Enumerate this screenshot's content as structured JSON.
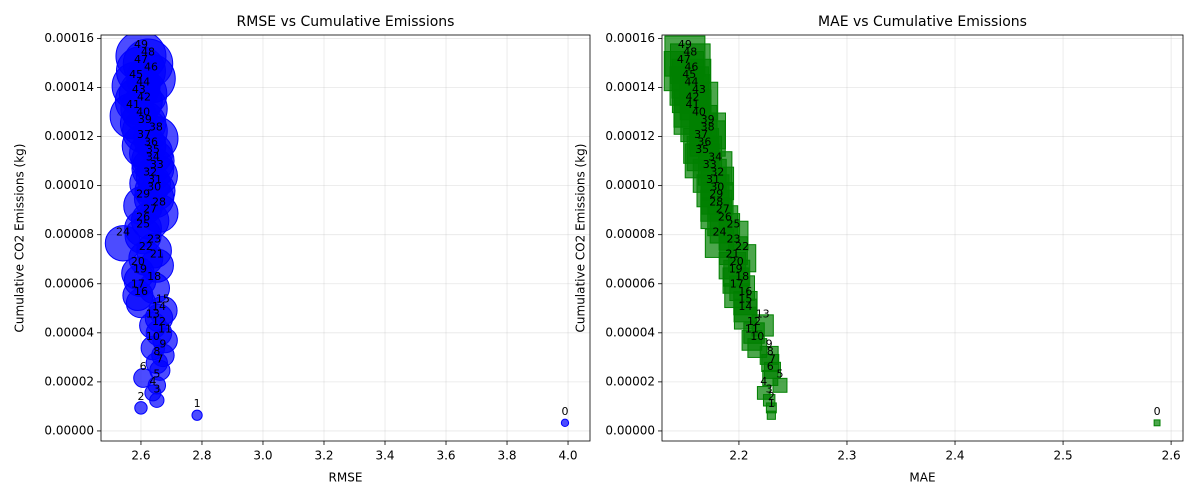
{
  "chart_data": [
    {
      "type": "scatter",
      "marker": "circle",
      "title": "RMSE vs Cumulative Emissions",
      "xlabel": "RMSE",
      "ylabel": "Cumulative CO2 Emissions (kg)",
      "color": "#0000ff",
      "grid": true,
      "point_labels": [
        0,
        1,
        2,
        3,
        4,
        5,
        6,
        7,
        8,
        9,
        10,
        11,
        12,
        13,
        14,
        15,
        16,
        17,
        18,
        19,
        20,
        21,
        22,
        23,
        24,
        25,
        26,
        27,
        28,
        29,
        30,
        31,
        32,
        33,
        34,
        35,
        36,
        37,
        38,
        39,
        40,
        41,
        42,
        43,
        44,
        45,
        46,
        47,
        48,
        49
      ],
      "x": [
        3.99,
        2.784,
        2.6,
        2.652,
        2.639,
        2.652,
        2.607,
        2.662,
        2.652,
        2.672,
        2.639,
        2.679,
        2.659,
        2.639,
        2.659,
        2.672,
        2.6,
        2.59,
        2.643,
        2.597,
        2.59,
        2.652,
        2.616,
        2.643,
        2.541,
        2.607,
        2.607,
        2.63,
        2.659,
        2.607,
        2.643,
        2.646,
        2.63,
        2.652,
        2.639,
        2.639,
        2.633,
        2.61,
        2.649,
        2.613,
        2.607,
        2.574,
        2.61,
        2.593,
        2.607,
        2.584,
        2.633,
        2.6,
        2.623,
        2.6
      ],
      "values": [
        3.3e-06,
        6.4e-06,
        9.4e-06,
        1.25e-05,
        1.55e-05,
        1.86e-05,
        2.16e-05,
        2.47e-05,
        2.77e-05,
        3.08e-05,
        3.38e-05,
        3.69e-05,
        3.99e-05,
        4.3e-05,
        4.6e-05,
        4.91e-05,
        5.21e-05,
        5.52e-05,
        5.82e-05,
        6.13e-05,
        6.43e-05,
        6.74e-05,
        7.04e-05,
        7.35e-05,
        7.65e-05,
        7.96e-05,
        8.26e-05,
        8.57e-05,
        8.87e-05,
        9.18e-05,
        9.48e-05,
        9.79e-05,
        0.0001009,
        0.000104,
        0.000107,
        0.0001101,
        0.0001131,
        0.0001162,
        0.0001192,
        0.0001223,
        0.0001253,
        0.0001284,
        0.0001314,
        0.0001345,
        0.0001375,
        0.0001406,
        0.0001436,
        0.0001467,
        0.0001497,
        0.0001528
      ],
      "xlim": [
        2.469,
        4.072
      ],
      "ylim": [
        -4.1e-06,
        0.0001614
      ],
      "xticks": [
        2.6,
        2.8,
        {
          "value": 3,
          "label": "3.0"
        },
        3.2,
        3.4,
        3.6,
        3.8,
        {
          "value": 4,
          "label": "4.0"
        }
      ],
      "yticks": [
        {
          "value": 0,
          "label": "0.00000"
        },
        {
          "value": 2e-05,
          "label": "0.00002"
        },
        {
          "value": 4e-05,
          "label": "0.00004"
        },
        {
          "value": 6e-05,
          "label": "0.00006"
        },
        {
          "value": 8e-05,
          "label": "0.00008"
        },
        {
          "value": 0.0001,
          "label": "0.00010"
        },
        {
          "value": 0.00012,
          "label": "0.00012"
        },
        {
          "value": 0.00014,
          "label": "0.00014"
        },
        {
          "value": 0.00016,
          "label": "0.00016"
        }
      ]
    },
    {
      "type": "scatter",
      "marker": "square",
      "title": "MAE vs Cumulative Emissions",
      "xlabel": "MAE",
      "ylabel": "Cumulative CO2 Emissions (kg)",
      "color": "#008000",
      "grid": true,
      "point_labels": [
        0,
        1,
        2,
        3,
        4,
        5,
        6,
        7,
        8,
        9,
        10,
        11,
        12,
        13,
        14,
        15,
        16,
        17,
        18,
        19,
        20,
        21,
        22,
        23,
        24,
        25,
        26,
        27,
        28,
        29,
        30,
        31,
        32,
        33,
        34,
        35,
        36,
        37,
        38,
        39,
        40,
        41,
        42,
        43,
        44,
        45,
        46,
        47,
        48,
        49
      ],
      "x": [
        2.587,
        2.23,
        2.23,
        2.228,
        2.223,
        2.238,
        2.229,
        2.231,
        2.229,
        2.228,
        2.217,
        2.212,
        2.214,
        2.222,
        2.206,
        2.206,
        2.206,
        2.198,
        2.203,
        2.197,
        2.198,
        2.194,
        2.203,
        2.195,
        2.182,
        2.195,
        2.187,
        2.185,
        2.179,
        2.179,
        2.18,
        2.176,
        2.18,
        2.173,
        2.178,
        2.166,
        2.168,
        2.165,
        2.171,
        2.171,
        2.163,
        2.157,
        2.157,
        2.163,
        2.156,
        2.154,
        2.156,
        2.149,
        2.155,
        2.15
      ],
      "values": [
        3.3e-06,
        6.4e-06,
        9.4e-06,
        1.25e-05,
        1.55e-05,
        1.86e-05,
        2.16e-05,
        2.47e-05,
        2.77e-05,
        3.08e-05,
        3.38e-05,
        3.69e-05,
        3.99e-05,
        4.3e-05,
        4.6e-05,
        4.91e-05,
        5.21e-05,
        5.52e-05,
        5.82e-05,
        6.13e-05,
        6.43e-05,
        6.74e-05,
        7.04e-05,
        7.35e-05,
        7.65e-05,
        7.96e-05,
        8.26e-05,
        8.57e-05,
        8.87e-05,
        9.18e-05,
        9.48e-05,
        9.79e-05,
        0.0001009,
        0.000104,
        0.000107,
        0.0001101,
        0.0001131,
        0.0001162,
        0.0001192,
        0.0001223,
        0.0001253,
        0.0001284,
        0.0001314,
        0.0001345,
        0.0001375,
        0.0001406,
        0.0001436,
        0.0001467,
        0.0001497,
        0.0001528
      ],
      "xlim": [
        2.1288,
        2.611
      ],
      "ylim": [
        -4.1e-06,
        0.0001614
      ],
      "xticks": [
        2.2,
        2.3,
        2.4,
        2.5,
        2.6
      ],
      "yticks": [
        {
          "value": 0,
          "label": "0.00000"
        },
        {
          "value": 2e-05,
          "label": "0.00002"
        },
        {
          "value": 4e-05,
          "label": "0.00004"
        },
        {
          "value": 6e-05,
          "label": "0.00006"
        },
        {
          "value": 8e-05,
          "label": "0.00008"
        },
        {
          "value": 0.0001,
          "label": "0.00010"
        },
        {
          "value": 0.00012,
          "label": "0.00012"
        },
        {
          "value": 0.00014,
          "label": "0.00014"
        },
        {
          "value": 0.00016,
          "label": "0.00016"
        }
      ]
    }
  ]
}
